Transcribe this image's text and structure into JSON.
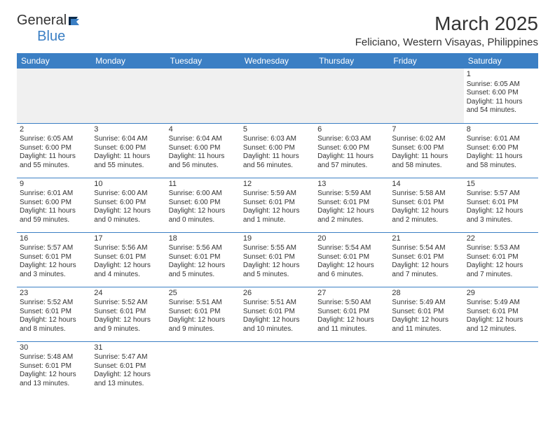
{
  "logo": {
    "text1": "General",
    "text2": "Blue"
  },
  "title": "March 2025",
  "location": "Feliciano, Western Visayas, Philippines",
  "colors": {
    "header_bg": "#3b7fc4",
    "header_text": "#ffffff",
    "border": "#3b7fc4",
    "spacer_bg": "#f0f0f0",
    "text": "#333333",
    "logo_accent": "#3b7fc4"
  },
  "daysOfWeek": [
    "Sunday",
    "Monday",
    "Tuesday",
    "Wednesday",
    "Thursday",
    "Friday",
    "Saturday"
  ],
  "weeks": [
    [
      null,
      null,
      null,
      null,
      null,
      null,
      {
        "n": "1",
        "sr": "Sunrise: 6:05 AM",
        "ss": "Sunset: 6:00 PM",
        "d1": "Daylight: 11 hours",
        "d2": "and 54 minutes."
      }
    ],
    [
      {
        "n": "2",
        "sr": "Sunrise: 6:05 AM",
        "ss": "Sunset: 6:00 PM",
        "d1": "Daylight: 11 hours",
        "d2": "and 55 minutes."
      },
      {
        "n": "3",
        "sr": "Sunrise: 6:04 AM",
        "ss": "Sunset: 6:00 PM",
        "d1": "Daylight: 11 hours",
        "d2": "and 55 minutes."
      },
      {
        "n": "4",
        "sr": "Sunrise: 6:04 AM",
        "ss": "Sunset: 6:00 PM",
        "d1": "Daylight: 11 hours",
        "d2": "and 56 minutes."
      },
      {
        "n": "5",
        "sr": "Sunrise: 6:03 AM",
        "ss": "Sunset: 6:00 PM",
        "d1": "Daylight: 11 hours",
        "d2": "and 56 minutes."
      },
      {
        "n": "6",
        "sr": "Sunrise: 6:03 AM",
        "ss": "Sunset: 6:00 PM",
        "d1": "Daylight: 11 hours",
        "d2": "and 57 minutes."
      },
      {
        "n": "7",
        "sr": "Sunrise: 6:02 AM",
        "ss": "Sunset: 6:00 PM",
        "d1": "Daylight: 11 hours",
        "d2": "and 58 minutes."
      },
      {
        "n": "8",
        "sr": "Sunrise: 6:01 AM",
        "ss": "Sunset: 6:00 PM",
        "d1": "Daylight: 11 hours",
        "d2": "and 58 minutes."
      }
    ],
    [
      {
        "n": "9",
        "sr": "Sunrise: 6:01 AM",
        "ss": "Sunset: 6:00 PM",
        "d1": "Daylight: 11 hours",
        "d2": "and 59 minutes."
      },
      {
        "n": "10",
        "sr": "Sunrise: 6:00 AM",
        "ss": "Sunset: 6:00 PM",
        "d1": "Daylight: 12 hours",
        "d2": "and 0 minutes."
      },
      {
        "n": "11",
        "sr": "Sunrise: 6:00 AM",
        "ss": "Sunset: 6:00 PM",
        "d1": "Daylight: 12 hours",
        "d2": "and 0 minutes."
      },
      {
        "n": "12",
        "sr": "Sunrise: 5:59 AM",
        "ss": "Sunset: 6:01 PM",
        "d1": "Daylight: 12 hours",
        "d2": "and 1 minute."
      },
      {
        "n": "13",
        "sr": "Sunrise: 5:59 AM",
        "ss": "Sunset: 6:01 PM",
        "d1": "Daylight: 12 hours",
        "d2": "and 2 minutes."
      },
      {
        "n": "14",
        "sr": "Sunrise: 5:58 AM",
        "ss": "Sunset: 6:01 PM",
        "d1": "Daylight: 12 hours",
        "d2": "and 2 minutes."
      },
      {
        "n": "15",
        "sr": "Sunrise: 5:57 AM",
        "ss": "Sunset: 6:01 PM",
        "d1": "Daylight: 12 hours",
        "d2": "and 3 minutes."
      }
    ],
    [
      {
        "n": "16",
        "sr": "Sunrise: 5:57 AM",
        "ss": "Sunset: 6:01 PM",
        "d1": "Daylight: 12 hours",
        "d2": "and 3 minutes."
      },
      {
        "n": "17",
        "sr": "Sunrise: 5:56 AM",
        "ss": "Sunset: 6:01 PM",
        "d1": "Daylight: 12 hours",
        "d2": "and 4 minutes."
      },
      {
        "n": "18",
        "sr": "Sunrise: 5:56 AM",
        "ss": "Sunset: 6:01 PM",
        "d1": "Daylight: 12 hours",
        "d2": "and 5 minutes."
      },
      {
        "n": "19",
        "sr": "Sunrise: 5:55 AM",
        "ss": "Sunset: 6:01 PM",
        "d1": "Daylight: 12 hours",
        "d2": "and 5 minutes."
      },
      {
        "n": "20",
        "sr": "Sunrise: 5:54 AM",
        "ss": "Sunset: 6:01 PM",
        "d1": "Daylight: 12 hours",
        "d2": "and 6 minutes."
      },
      {
        "n": "21",
        "sr": "Sunrise: 5:54 AM",
        "ss": "Sunset: 6:01 PM",
        "d1": "Daylight: 12 hours",
        "d2": "and 7 minutes."
      },
      {
        "n": "22",
        "sr": "Sunrise: 5:53 AM",
        "ss": "Sunset: 6:01 PM",
        "d1": "Daylight: 12 hours",
        "d2": "and 7 minutes."
      }
    ],
    [
      {
        "n": "23",
        "sr": "Sunrise: 5:52 AM",
        "ss": "Sunset: 6:01 PM",
        "d1": "Daylight: 12 hours",
        "d2": "and 8 minutes."
      },
      {
        "n": "24",
        "sr": "Sunrise: 5:52 AM",
        "ss": "Sunset: 6:01 PM",
        "d1": "Daylight: 12 hours",
        "d2": "and 9 minutes."
      },
      {
        "n": "25",
        "sr": "Sunrise: 5:51 AM",
        "ss": "Sunset: 6:01 PM",
        "d1": "Daylight: 12 hours",
        "d2": "and 9 minutes."
      },
      {
        "n": "26",
        "sr": "Sunrise: 5:51 AM",
        "ss": "Sunset: 6:01 PM",
        "d1": "Daylight: 12 hours",
        "d2": "and 10 minutes."
      },
      {
        "n": "27",
        "sr": "Sunrise: 5:50 AM",
        "ss": "Sunset: 6:01 PM",
        "d1": "Daylight: 12 hours",
        "d2": "and 11 minutes."
      },
      {
        "n": "28",
        "sr": "Sunrise: 5:49 AM",
        "ss": "Sunset: 6:01 PM",
        "d1": "Daylight: 12 hours",
        "d2": "and 11 minutes."
      },
      {
        "n": "29",
        "sr": "Sunrise: 5:49 AM",
        "ss": "Sunset: 6:01 PM",
        "d1": "Daylight: 12 hours",
        "d2": "and 12 minutes."
      }
    ],
    [
      {
        "n": "30",
        "sr": "Sunrise: 5:48 AM",
        "ss": "Sunset: 6:01 PM",
        "d1": "Daylight: 12 hours",
        "d2": "and 13 minutes."
      },
      {
        "n": "31",
        "sr": "Sunrise: 5:47 AM",
        "ss": "Sunset: 6:01 PM",
        "d1": "Daylight: 12 hours",
        "d2": "and 13 minutes."
      },
      null,
      null,
      null,
      null,
      null
    ]
  ]
}
